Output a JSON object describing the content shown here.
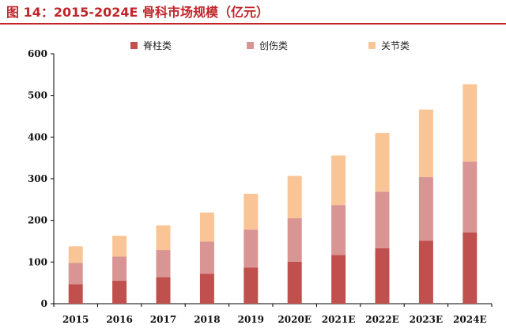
{
  "title": "图 14：2015-2024E 骨科市场规模（亿元）",
  "colors": {
    "title": "#c0252a",
    "spine": "#c0504d",
    "trauma": "#d99594",
    "joint": "#f9c596"
  },
  "chart_data": {
    "type": "bar",
    "stacked": true,
    "title": "图 14：2015-2024E 骨科市场规模（亿元）",
    "xlabel": "",
    "ylabel": "",
    "categories": [
      "2015",
      "2016",
      "2017",
      "2018",
      "2019",
      "2020E",
      "2021E",
      "2022E",
      "2023E",
      "2024E"
    ],
    "ylim": [
      0,
      600
    ],
    "yticks": [
      0,
      100,
      200,
      300,
      400,
      500,
      600
    ],
    "grid": false,
    "legend_position": "top",
    "series": [
      {
        "name": "脊柱类",
        "color": "#c0504d",
        "values": [
          47,
          55,
          64,
          72,
          87,
          101,
          117,
          133,
          151,
          171
        ]
      },
      {
        "name": "创伤类",
        "color": "#d99594",
        "values": [
          51,
          58,
          65,
          77,
          91,
          104,
          120,
          136,
          153,
          170
        ]
      },
      {
        "name": "关节类",
        "color": "#f9c596",
        "values": [
          40,
          50,
          59,
          70,
          86,
          102,
          119,
          141,
          162,
          186
        ]
      }
    ]
  }
}
